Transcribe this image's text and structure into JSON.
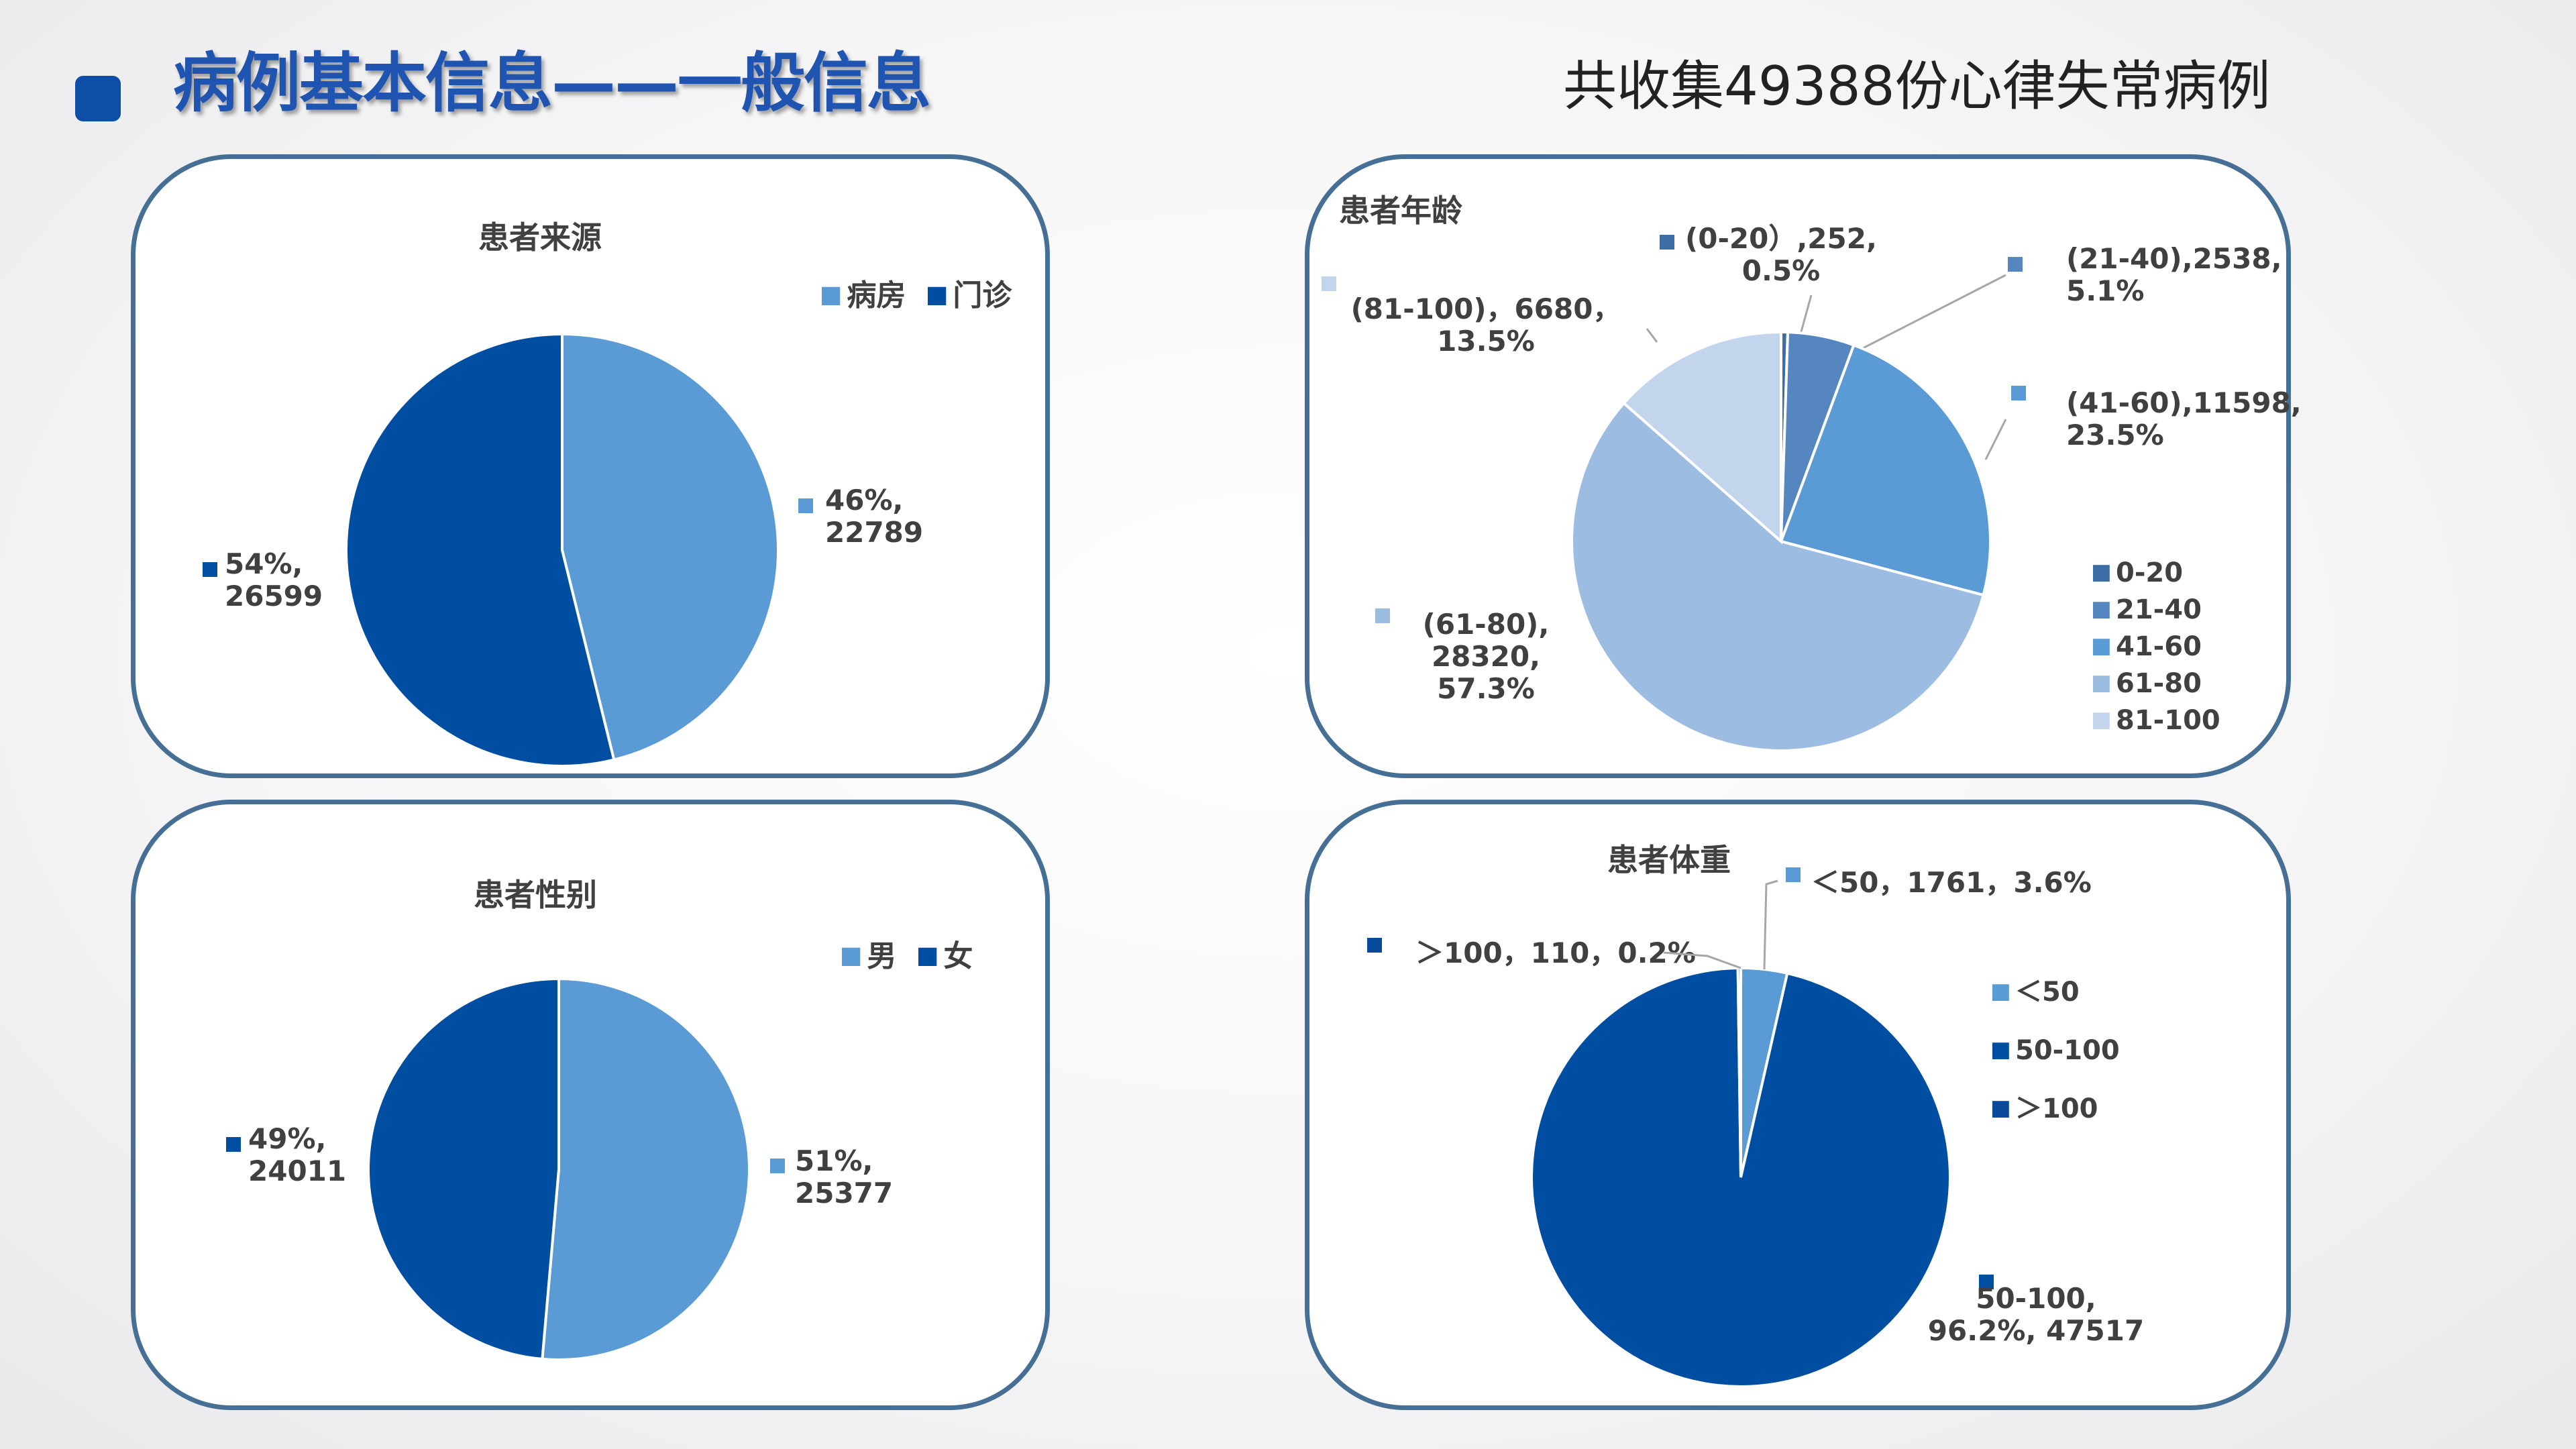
{
  "header": {
    "title": "病例基本信息——一般信息",
    "subtitle": "共收集49388份心律失常病例"
  },
  "colors": {
    "accent": "#0d4ea6",
    "panel_border": "#456f95",
    "series_dark": "#004ea2",
    "series_light": "#5b9bd5"
  },
  "chart_data": [
    {
      "type": "pie",
      "title": "患者来源",
      "legend_position": "top-right",
      "slices": [
        {
          "name": "病房",
          "value": 22789,
          "percent": "46%",
          "color": "#5b9bd5",
          "label_lines": [
            "46%,",
            "22789"
          ]
        },
        {
          "name": "门诊",
          "value": 26599,
          "percent": "54%",
          "color": "#004ea2",
          "label_lines": [
            "54%,",
            "26599"
          ]
        }
      ]
    },
    {
      "type": "pie",
      "title": "患者年龄",
      "legend_position": "right",
      "slices": [
        {
          "name": "0-20",
          "value": 252,
          "percent": "0.5%",
          "color": "#3c6ea5",
          "label_lines": [
            "(0-20）,252,",
            "0.5%"
          ]
        },
        {
          "name": "21-40",
          "value": 2538,
          "percent": "5.1%",
          "color": "#5586c0",
          "label_lines": [
            "(21-40),2538,",
            "5.1%"
          ]
        },
        {
          "name": "41-60",
          "value": 11598,
          "percent": "23.5%",
          "color": "#5b9bd5",
          "label_lines": [
            "(41-60),11598,",
            "23.5%"
          ]
        },
        {
          "name": "61-80",
          "value": 28320,
          "percent": "57.3%",
          "color": "#9dbce2",
          "label_lines": [
            "(61-80),",
            "28320,",
            "57.3%"
          ]
        },
        {
          "name": "81-100",
          "value": 6680,
          "percent": "13.5%",
          "color": "#c3d5ec",
          "label_lines": [
            "(81-100)，6680，",
            "13.5%"
          ]
        }
      ]
    },
    {
      "type": "pie",
      "title": "患者性别",
      "legend_position": "top-right",
      "slices": [
        {
          "name": "男",
          "value": 25377,
          "percent": "51%",
          "color": "#5b9bd5",
          "label_lines": [
            "51%,",
            "25377"
          ]
        },
        {
          "name": "女",
          "value": 24011,
          "percent": "49%",
          "color": "#004ea2",
          "label_lines": [
            "49%,",
            "24011"
          ]
        }
      ]
    },
    {
      "type": "pie",
      "title": "患者体重",
      "legend_position": "right",
      "slices": [
        {
          "name": "＜50",
          "value": 1761,
          "percent": "3.6%",
          "color": "#5b9bd5",
          "label_lines": [
            "＜50，1761，3.6%"
          ]
        },
        {
          "name": "50-100",
          "value": 47517,
          "percent": "96.2%",
          "color": "#004ea2",
          "label_lines": [
            "50-100,",
            "96.2%, 47517"
          ]
        },
        {
          "name": "＞100",
          "value": 110,
          "percent": "0.2%",
          "color": "#0a4a9a",
          "label_lines": [
            "＞100，110，0.2%"
          ]
        }
      ]
    }
  ]
}
